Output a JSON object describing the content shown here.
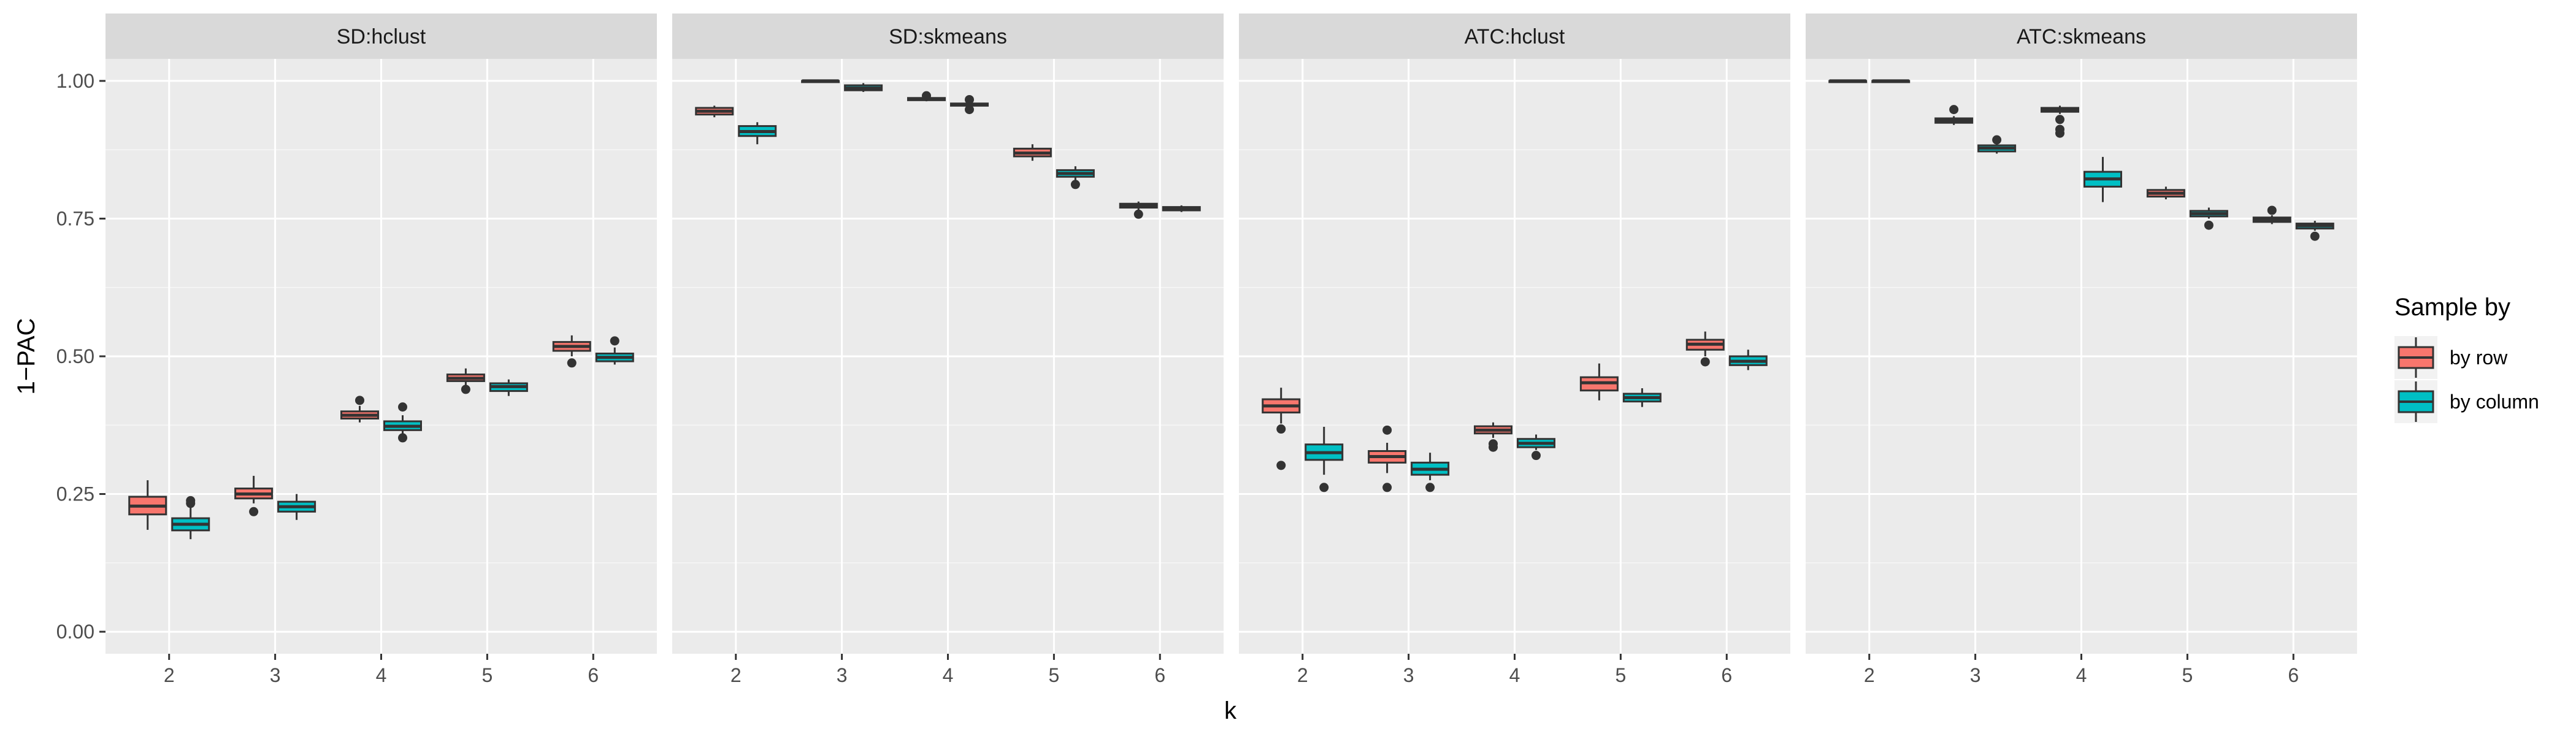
{
  "chart_data": {
    "type": "boxplot",
    "xlabel": "k",
    "ylabel": "1−PAC",
    "ylim": [
      -0.04,
      1.04
    ],
    "yticks": [
      0.0,
      0.25,
      0.5,
      0.75,
      1.0
    ],
    "ytick_labels": [
      "0.00",
      "0.25",
      "0.50",
      "0.75",
      "1.00"
    ],
    "categories": [
      "2",
      "3",
      "4",
      "5",
      "6"
    ],
    "grid": true,
    "legend": {
      "title": "Sample by",
      "position": "right",
      "entries": [
        {
          "label": "by row",
          "color": "#F8766D"
        },
        {
          "label": "by column",
          "color": "#00BFC4"
        }
      ]
    },
    "panels": [
      {
        "title": "SD:hclust",
        "series": [
          {
            "name": "by row",
            "boxes": [
              {
                "k": "2",
                "min": 0.185,
                "q1": 0.213,
                "median": 0.228,
                "q3": 0.245,
                "max": 0.275,
                "outliers": []
              },
              {
                "k": "3",
                "min": 0.233,
                "q1": 0.242,
                "median": 0.25,
                "q3": 0.26,
                "max": 0.283,
                "outliers": [
                  0.218
                ]
              },
              {
                "k": "4",
                "min": 0.38,
                "q1": 0.387,
                "median": 0.393,
                "q3": 0.4,
                "max": 0.41,
                "outliers": [
                  0.42
                ]
              },
              {
                "k": "5",
                "min": 0.448,
                "q1": 0.455,
                "median": 0.46,
                "q3": 0.467,
                "max": 0.478,
                "outliers": [
                  0.44
                ]
              },
              {
                "k": "6",
                "min": 0.5,
                "q1": 0.51,
                "median": 0.518,
                "q3": 0.526,
                "max": 0.538,
                "outliers": [
                  0.488
                ]
              }
            ]
          },
          {
            "name": "by column",
            "boxes": [
              {
                "k": "2",
                "min": 0.168,
                "q1": 0.184,
                "median": 0.195,
                "q3": 0.206,
                "max": 0.228,
                "outliers": [
                  0.233,
                  0.238
                ]
              },
              {
                "k": "3",
                "min": 0.203,
                "q1": 0.218,
                "median": 0.227,
                "q3": 0.236,
                "max": 0.25,
                "outliers": []
              },
              {
                "k": "4",
                "min": 0.36,
                "q1": 0.366,
                "median": 0.373,
                "q3": 0.382,
                "max": 0.393,
                "outliers": [
                  0.352,
                  0.408
                ]
              },
              {
                "k": "5",
                "min": 0.428,
                "q1": 0.437,
                "median": 0.445,
                "q3": 0.451,
                "max": 0.458,
                "outliers": []
              },
              {
                "k": "6",
                "min": 0.485,
                "q1": 0.491,
                "median": 0.498,
                "q3": 0.505,
                "max": 0.516,
                "outliers": [
                  0.528
                ]
              }
            ]
          }
        ]
      },
      {
        "title": "SD:skmeans",
        "series": [
          {
            "name": "by row",
            "boxes": [
              {
                "k": "2",
                "min": 0.934,
                "q1": 0.939,
                "median": 0.945,
                "q3": 0.951,
                "max": 0.955,
                "outliers": []
              },
              {
                "k": "3",
                "min": 0.998,
                "q1": 0.999,
                "median": 1.0,
                "q3": 1.0,
                "max": 1.0,
                "outliers": []
              },
              {
                "k": "4",
                "min": 0.963,
                "q1": 0.965,
                "median": 0.967,
                "q3": 0.969,
                "max": 0.971,
                "outliers": [
                  0.973
                ]
              },
              {
                "k": "5",
                "min": 0.855,
                "q1": 0.863,
                "median": 0.869,
                "q3": 0.877,
                "max": 0.885,
                "outliers": []
              },
              {
                "k": "6",
                "min": 0.766,
                "q1": 0.77,
                "median": 0.774,
                "q3": 0.777,
                "max": 0.781,
                "outliers": [
                  0.758
                ]
              }
            ]
          },
          {
            "name": "by column",
            "boxes": [
              {
                "k": "2",
                "min": 0.885,
                "q1": 0.9,
                "median": 0.908,
                "q3": 0.918,
                "max": 0.925,
                "outliers": []
              },
              {
                "k": "3",
                "min": 0.98,
                "q1": 0.983,
                "median": 0.987,
                "q3": 0.992,
                "max": 0.996,
                "outliers": []
              },
              {
                "k": "4",
                "min": 0.953,
                "q1": 0.955,
                "median": 0.957,
                "q3": 0.959,
                "max": 0.962,
                "outliers": [
                  0.948,
                  0.966
                ]
              },
              {
                "k": "5",
                "min": 0.82,
                "q1": 0.826,
                "median": 0.832,
                "q3": 0.838,
                "max": 0.845,
                "outliers": [
                  0.812
                ]
              },
              {
                "k": "6",
                "min": 0.762,
                "q1": 0.765,
                "median": 0.768,
                "q3": 0.771,
                "max": 0.774,
                "outliers": []
              }
            ]
          }
        ]
      },
      {
        "title": "ATC:hclust",
        "series": [
          {
            "name": "by row",
            "boxes": [
              {
                "k": "2",
                "min": 0.378,
                "q1": 0.398,
                "median": 0.41,
                "q3": 0.422,
                "max": 0.443,
                "outliers": [
                  0.368,
                  0.302
                ]
              },
              {
                "k": "3",
                "min": 0.288,
                "q1": 0.307,
                "median": 0.318,
                "q3": 0.328,
                "max": 0.343,
                "outliers": [
                  0.262,
                  0.366
                ]
              },
              {
                "k": "4",
                "min": 0.352,
                "q1": 0.36,
                "median": 0.366,
                "q3": 0.373,
                "max": 0.38,
                "outliers": [
                  0.335,
                  0.341
                ]
              },
              {
                "k": "5",
                "min": 0.42,
                "q1": 0.438,
                "median": 0.452,
                "q3": 0.462,
                "max": 0.487,
                "outliers": []
              },
              {
                "k": "6",
                "min": 0.5,
                "q1": 0.512,
                "median": 0.522,
                "q3": 0.53,
                "max": 0.545,
                "outliers": [
                  0.49
                ]
              }
            ]
          },
          {
            "name": "by column",
            "boxes": [
              {
                "k": "2",
                "min": 0.285,
                "q1": 0.312,
                "median": 0.325,
                "q3": 0.34,
                "max": 0.372,
                "outliers": [
                  0.262
                ]
              },
              {
                "k": "3",
                "min": 0.275,
                "q1": 0.285,
                "median": 0.295,
                "q3": 0.307,
                "max": 0.325,
                "outliers": [
                  0.262
                ]
              },
              {
                "k": "4",
                "min": 0.33,
                "q1": 0.335,
                "median": 0.342,
                "q3": 0.35,
                "max": 0.358,
                "outliers": [
                  0.32
                ]
              },
              {
                "k": "5",
                "min": 0.408,
                "q1": 0.418,
                "median": 0.425,
                "q3": 0.432,
                "max": 0.442,
                "outliers": []
              },
              {
                "k": "6",
                "min": 0.475,
                "q1": 0.484,
                "median": 0.491,
                "q3": 0.5,
                "max": 0.512,
                "outliers": []
              }
            ]
          }
        ]
      },
      {
        "title": "ATC:skmeans",
        "series": [
          {
            "name": "by row",
            "boxes": [
              {
                "k": "2",
                "min": 0.999,
                "q1": 1.0,
                "median": 1.0,
                "q3": 1.0,
                "max": 1.0,
                "outliers": []
              },
              {
                "k": "3",
                "min": 0.92,
                "q1": 0.924,
                "median": 0.928,
                "q3": 0.932,
                "max": 0.936,
                "outliers": [
                  0.948
                ]
              },
              {
                "k": "4",
                "min": 0.94,
                "q1": 0.944,
                "median": 0.948,
                "q3": 0.951,
                "max": 0.955,
                "outliers": [
                  0.905,
                  0.912,
                  0.93
                ]
              },
              {
                "k": "5",
                "min": 0.785,
                "q1": 0.79,
                "median": 0.796,
                "q3": 0.802,
                "max": 0.808,
                "outliers": []
              },
              {
                "k": "6",
                "min": 0.74,
                "q1": 0.744,
                "median": 0.748,
                "q3": 0.752,
                "max": 0.756,
                "outliers": [
                  0.765
                ]
              }
            ]
          },
          {
            "name": "by column",
            "boxes": [
              {
                "k": "2",
                "min": 0.999,
                "q1": 1.0,
                "median": 1.0,
                "q3": 1.0,
                "max": 1.0,
                "outliers": []
              },
              {
                "k": "3",
                "min": 0.868,
                "q1": 0.872,
                "median": 0.878,
                "q3": 0.883,
                "max": 0.887,
                "outliers": [
                  0.893
                ]
              },
              {
                "k": "4",
                "min": 0.78,
                "q1": 0.808,
                "median": 0.822,
                "q3": 0.835,
                "max": 0.862,
                "outliers": []
              },
              {
                "k": "5",
                "min": 0.75,
                "q1": 0.754,
                "median": 0.759,
                "q3": 0.764,
                "max": 0.77,
                "outliers": [
                  0.738
                ]
              },
              {
                "k": "6",
                "min": 0.728,
                "q1": 0.732,
                "median": 0.737,
                "q3": 0.741,
                "max": 0.746,
                "outliers": [
                  0.718
                ]
              }
            ]
          }
        ]
      }
    ]
  }
}
